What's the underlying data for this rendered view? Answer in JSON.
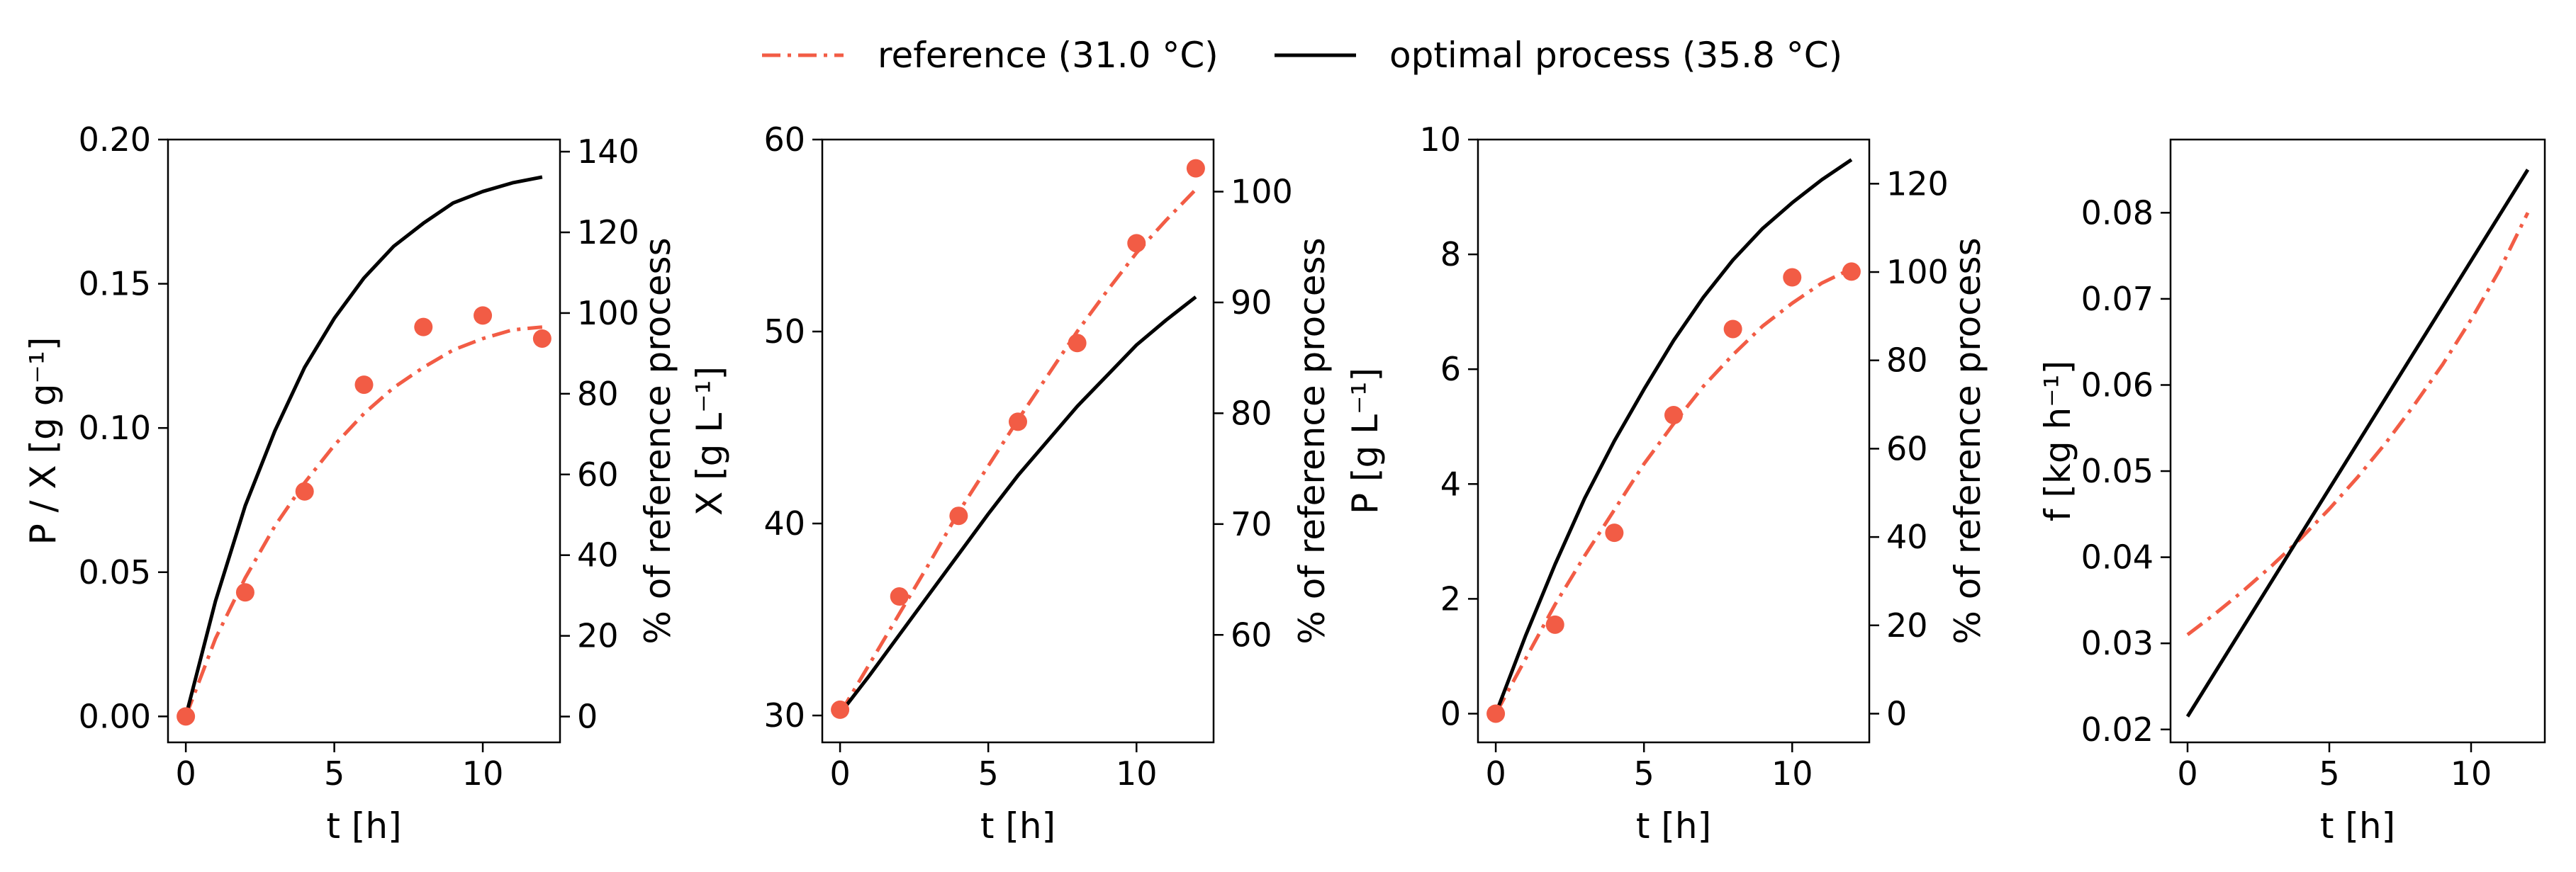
{
  "legend": {
    "entries": [
      {
        "label": "reference (31.0 °C)",
        "color": "#f25c45",
        "style": "dash-dot",
        "marker": "circle"
      },
      {
        "label": "optimal process (35.8 °C)",
        "color": "#000000",
        "style": "solid"
      }
    ],
    "placement": "top-center"
  },
  "colors": {
    "reference": "#f25c45",
    "optimal": "#000000"
  },
  "chart_data": [
    {
      "type": "line",
      "xlabel": "t [h]",
      "ylabel": "P / X [g g⁻¹]",
      "y2label": "% of reference process",
      "xlim": [
        -0.6,
        12.6
      ],
      "ylim": [
        -0.009,
        0.2
      ],
      "y2lim": [
        -6.4,
        143
      ],
      "xticks": [
        0,
        5,
        10
      ],
      "xtick_labels": [
        "0",
        "5",
        "10"
      ],
      "yticks": [
        0,
        0.05,
        0.1,
        0.15,
        0.2
      ],
      "ytick_labels": [
        "0.00",
        "0.05",
        "0.10",
        "0.15",
        "0.20"
      ],
      "y2ticks": [
        0,
        20,
        40,
        60,
        80,
        100,
        120,
        140
      ],
      "y2tick_labels": [
        "0",
        "20",
        "40",
        "60",
        "80",
        "100",
        "120",
        "140"
      ],
      "series": [
        {
          "name": "reference (31.0 °C)",
          "style": "dash-dot",
          "x": [
            0,
            1,
            2,
            3,
            4,
            5,
            6,
            7,
            8,
            9,
            10,
            11,
            12
          ],
          "y": [
            0,
            0.027,
            0.048,
            0.066,
            0.081,
            0.094,
            0.105,
            0.114,
            0.121,
            0.127,
            0.131,
            0.134,
            0.135
          ]
        },
        {
          "name": "optimal process (35.8 °C)",
          "style": "solid",
          "x": [
            0,
            1,
            2,
            3,
            4,
            5,
            6,
            7,
            8,
            9,
            10,
            11,
            12
          ],
          "y": [
            0,
            0.04,
            0.073,
            0.099,
            0.121,
            0.138,
            0.152,
            0.163,
            0.171,
            0.178,
            0.182,
            0.185,
            0.187
          ]
        },
        {
          "name": "reference (31.0 °C)",
          "style": "markers",
          "x": [
            0,
            2,
            4,
            6,
            8,
            10,
            12
          ],
          "y": [
            0,
            0.043,
            0.078,
            0.115,
            0.135,
            0.139,
            0.131
          ]
        }
      ]
    },
    {
      "type": "line",
      "xlabel": "t [h]",
      "ylabel": "X [g L⁻¹]",
      "y2label": "% of reference process",
      "xlim": [
        -0.6,
        12.6
      ],
      "ylim": [
        28.6,
        60
      ],
      "y2lim": [
        50.3,
        104.7
      ],
      "xticks": [
        0,
        5,
        10
      ],
      "xtick_labels": [
        "0",
        "5",
        "10"
      ],
      "yticks": [
        30,
        40,
        50,
        60
      ],
      "ytick_labels": [
        "30",
        "40",
        "50",
        "60"
      ],
      "y2ticks": [
        60,
        70,
        80,
        90,
        100
      ],
      "y2tick_labels": [
        "60",
        "70",
        "80",
        "90",
        "100"
      ],
      "series": [
        {
          "name": "reference (31.0 °C)",
          "style": "dash-dot",
          "x": [
            0,
            1,
            2,
            3,
            4,
            5,
            6,
            7,
            8,
            9,
            10,
            11,
            12
          ],
          "y": [
            30.1,
            32.7,
            35.3,
            37.9,
            40.6,
            43.0,
            45.4,
            47.7,
            50.0,
            52.1,
            54.1,
            55.8,
            57.4
          ]
        },
        {
          "name": "optimal process (35.8 °C)",
          "style": "solid",
          "x": [
            0,
            1,
            2,
            3,
            4,
            5,
            6,
            7,
            8,
            9,
            10,
            11,
            12
          ],
          "y": [
            30.1,
            32.1,
            34.2,
            36.3,
            38.4,
            40.5,
            42.5,
            44.3,
            46.1,
            47.7,
            49.3,
            50.6,
            51.8
          ]
        },
        {
          "name": "reference (31.0 °C)",
          "style": "markers",
          "x": [
            0,
            2,
            4,
            6,
            8,
            10,
            12
          ],
          "y": [
            30.3,
            36.2,
            40.4,
            45.3,
            49.4,
            54.6,
            58.5
          ]
        }
      ]
    },
    {
      "type": "line",
      "xlabel": "t [h]",
      "ylabel": "P [g L⁻¹]",
      "y2label": "% of reference process",
      "xlim": [
        -0.6,
        12.6
      ],
      "ylim": [
        -0.5,
        10
      ],
      "y2lim": [
        -6.5,
        130
      ],
      "xticks": [
        0,
        5,
        10
      ],
      "xtick_labels": [
        "0",
        "5",
        "10"
      ],
      "yticks": [
        0,
        2,
        4,
        6,
        8,
        10
      ],
      "ytick_labels": [
        "0",
        "2",
        "4",
        "6",
        "8",
        "10"
      ],
      "y2ticks": [
        0,
        20,
        40,
        60,
        80,
        100,
        120
      ],
      "y2tick_labels": [
        "0",
        "20",
        "40",
        "60",
        "80",
        "100",
        "120"
      ],
      "series": [
        {
          "name": "reference (31.0 °C)",
          "style": "dash-dot",
          "x": [
            0,
            1,
            2,
            3,
            4,
            5,
            6,
            7,
            8,
            9,
            10,
            11,
            12
          ],
          "y": [
            0,
            0.95,
            1.9,
            2.75,
            3.55,
            4.35,
            5.05,
            5.7,
            6.25,
            6.75,
            7.15,
            7.5,
            7.75
          ]
        },
        {
          "name": "optimal process (35.8 °C)",
          "style": "solid",
          "x": [
            0,
            1,
            2,
            3,
            4,
            5,
            6,
            7,
            8,
            9,
            10,
            11,
            12
          ],
          "y": [
            0,
            1.35,
            2.6,
            3.75,
            4.75,
            5.65,
            6.5,
            7.25,
            7.9,
            8.45,
            8.9,
            9.3,
            9.65
          ]
        },
        {
          "name": "reference (31.0 °C)",
          "style": "markers",
          "x": [
            0,
            2,
            4,
            6,
            8,
            10,
            12
          ],
          "y": [
            0,
            1.55,
            3.15,
            5.2,
            6.7,
            7.6,
            7.7
          ]
        }
      ]
    },
    {
      "type": "line",
      "xlabel": "t [h]",
      "ylabel": "f [kg h⁻¹]",
      "xlim": [
        -0.6,
        12.6
      ],
      "ylim": [
        0.0185,
        0.0885
      ],
      "xticks": [
        0,
        5,
        10
      ],
      "xtick_labels": [
        "0",
        "5",
        "10"
      ],
      "yticks": [
        0.02,
        0.03,
        0.04,
        0.05,
        0.06,
        0.07,
        0.08
      ],
      "ytick_labels": [
        "0.02",
        "0.03",
        "0.04",
        "0.05",
        "0.06",
        "0.07",
        "0.08"
      ],
      "series": [
        {
          "name": "reference (31.0 °C)",
          "style": "dash-dot",
          "x": [
            0,
            1,
            2,
            3,
            4,
            5,
            6,
            7,
            8,
            9,
            10,
            11,
            12
          ],
          "y": [
            0.031,
            0.0335,
            0.0362,
            0.0391,
            0.0422,
            0.0456,
            0.0493,
            0.0533,
            0.0577,
            0.0624,
            0.0676,
            0.0733,
            0.08
          ]
        },
        {
          "name": "optimal process (35.8 °C)",
          "style": "solid",
          "x": [
            0,
            12
          ],
          "y": [
            0.0215,
            0.085
          ]
        }
      ]
    }
  ]
}
